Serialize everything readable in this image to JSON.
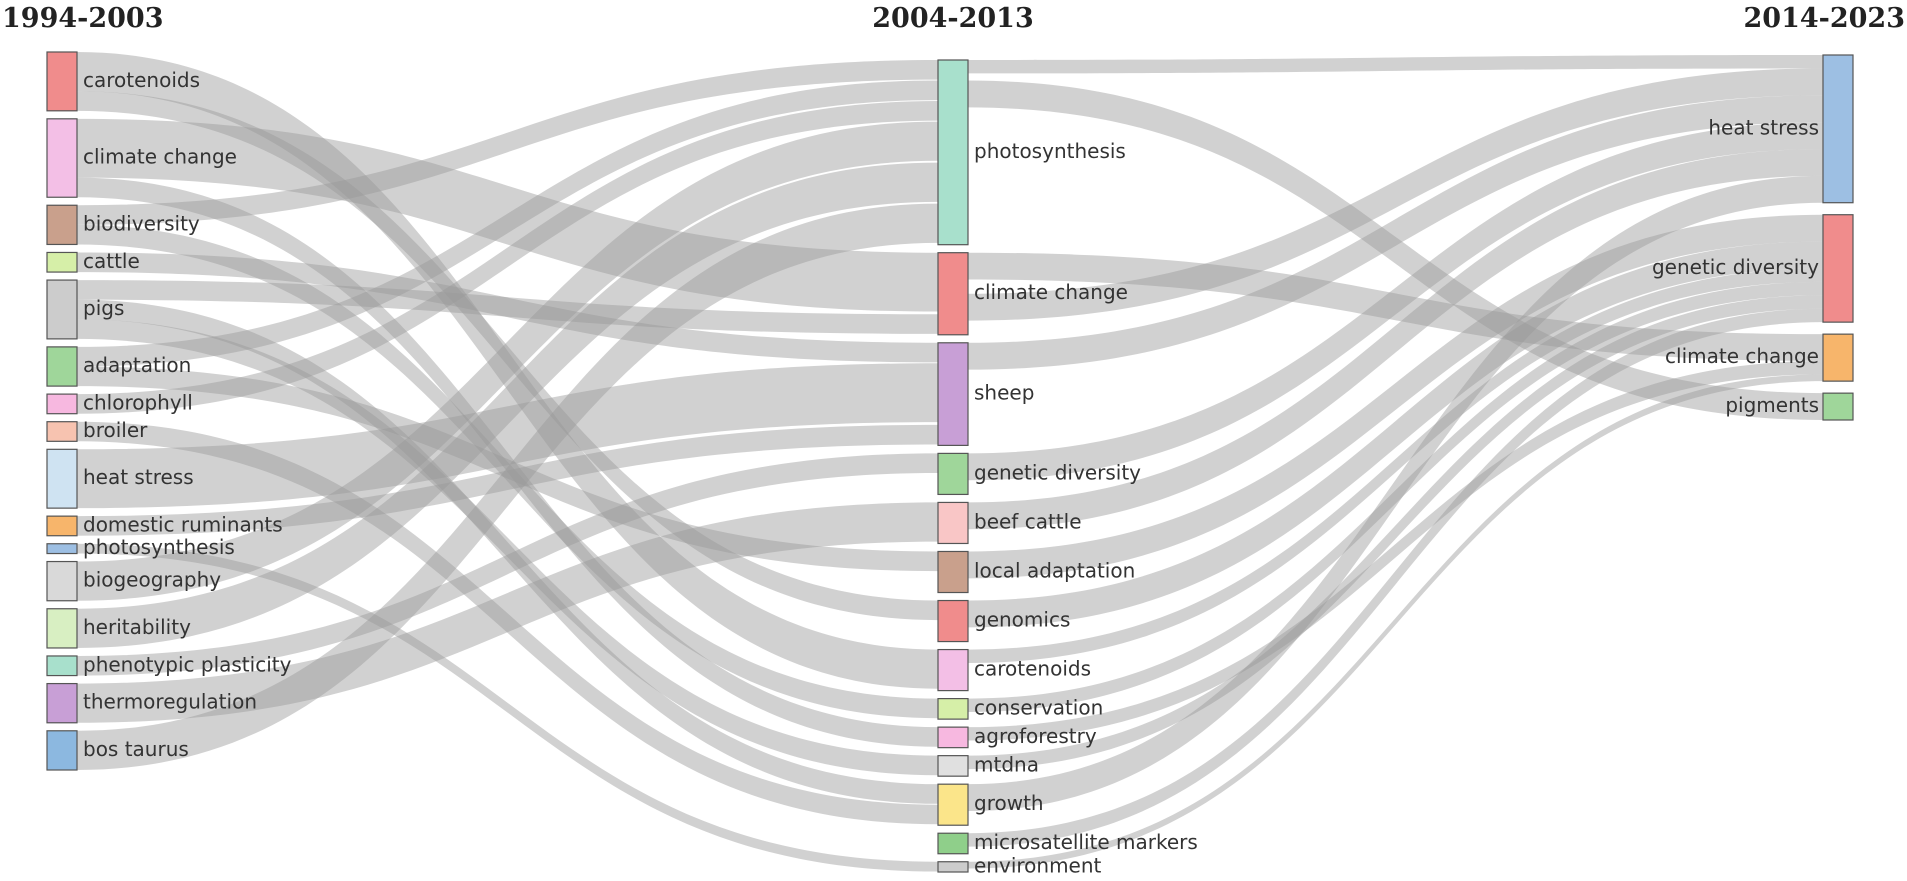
{
  "periods": [
    "1994-2003",
    "2004-2013",
    "2014-2023"
  ],
  "nodes": [
    {
      "id": "c1_carotenoids",
      "label": "carotenoids",
      "column": 0,
      "color": "#f08c8c"
    },
    {
      "id": "c1_climate",
      "label": "climate change",
      "column": 0,
      "color": "#f3bfe6"
    },
    {
      "id": "c1_biodiversity",
      "label": "biodiversity",
      "column": 0,
      "color": "#c9a08c"
    },
    {
      "id": "c1_cattle",
      "label": "cattle",
      "column": 0,
      "color": "#d6efa8"
    },
    {
      "id": "c1_pigs",
      "label": "pigs",
      "column": 0,
      "color": "#cccccc"
    },
    {
      "id": "c1_adaptation",
      "label": "adaptation",
      "column": 0,
      "color": "#9fd69a"
    },
    {
      "id": "c1_chlorophyll",
      "label": "chlorophyll",
      "column": 0,
      "color": "#f7b8e0"
    },
    {
      "id": "c1_broiler",
      "label": "broiler",
      "column": 0,
      "color": "#f7c3b0"
    },
    {
      "id": "c1_heat",
      "label": "heat stress",
      "column": 0,
      "color": "#cfe3f2"
    },
    {
      "id": "c1_domestic",
      "label": "domestic ruminants",
      "column": 0,
      "color": "#f7b56b"
    },
    {
      "id": "c1_photo",
      "label": "photosynthesis",
      "column": 0,
      "color": "#9dbfe3"
    },
    {
      "id": "c1_biogeo",
      "label": "biogeography",
      "column": 0,
      "color": "#d9d9d9"
    },
    {
      "id": "c1_herit",
      "label": "heritability",
      "column": 0,
      "color": "#d8efc2"
    },
    {
      "id": "c1_pheno",
      "label": "phenotypic plasticity",
      "column": 0,
      "color": "#a8e0cc"
    },
    {
      "id": "c1_thermo",
      "label": "thermoregulation",
      "column": 0,
      "color": "#c89fd6"
    },
    {
      "id": "c1_bos",
      "label": "bos taurus",
      "column": 0,
      "color": "#8cb8e0"
    },
    {
      "id": "c2_photo",
      "label": "photosynthesis",
      "column": 1,
      "color": "#a8e0cc"
    },
    {
      "id": "c2_climate",
      "label": "climate change",
      "column": 1,
      "color": "#f08c8c"
    },
    {
      "id": "c2_sheep",
      "label": "sheep",
      "column": 1,
      "color": "#c89fd6"
    },
    {
      "id": "c2_genetic",
      "label": "genetic diversity",
      "column": 1,
      "color": "#9fd69a"
    },
    {
      "id": "c2_beef",
      "label": "beef cattle",
      "column": 1,
      "color": "#f9c6c6"
    },
    {
      "id": "c2_local",
      "label": "local adaptation",
      "column": 1,
      "color": "#c9a08c"
    },
    {
      "id": "c2_genomics",
      "label": "genomics",
      "column": 1,
      "color": "#f08c8c"
    },
    {
      "id": "c2_carotenoids",
      "label": "carotenoids",
      "column": 1,
      "color": "#f3bfe6"
    },
    {
      "id": "c2_conservation",
      "label": "conservation",
      "column": 1,
      "color": "#d6efa8"
    },
    {
      "id": "c2_agro",
      "label": "agroforestry",
      "column": 1,
      "color": "#f7b8e0"
    },
    {
      "id": "c2_mtdna",
      "label": "mtdna",
      "column": 1,
      "color": "#e0e0e0"
    },
    {
      "id": "c2_growth",
      "label": "growth",
      "column": 1,
      "color": "#fbe58a"
    },
    {
      "id": "c2_micro",
      "label": "microsatellite markers",
      "column": 1,
      "color": "#8fcf8a"
    },
    {
      "id": "c2_env",
      "label": "environment",
      "column": 1,
      "color": "#cccccc"
    },
    {
      "id": "c3_heat",
      "label": "heat stress",
      "column": 2,
      "color": "#9dbfe3"
    },
    {
      "id": "c3_genetic",
      "label": "genetic diversity",
      "column": 2,
      "color": "#f08c8c"
    },
    {
      "id": "c3_climate",
      "label": "climate change",
      "column": 2,
      "color": "#f7b56b"
    },
    {
      "id": "c3_pigments",
      "label": "pigments",
      "column": 2,
      "color": "#9fd69a"
    }
  ],
  "links": [
    {
      "source": "c1_carotenoids",
      "target": "c2_carotenoids",
      "value": 2
    },
    {
      "source": "c1_carotenoids",
      "target": "c2_genomics",
      "value": 1
    },
    {
      "source": "c1_climate",
      "target": "c2_climate",
      "value": 3
    },
    {
      "source": "c1_climate",
      "target": "c2_agro",
      "value": 1
    },
    {
      "source": "c1_biodiversity",
      "target": "c2_photo",
      "value": 1
    },
    {
      "source": "c1_biodiversity",
      "target": "c2_conservation",
      "value": 1
    },
    {
      "source": "c1_cattle",
      "target": "c2_sheep",
      "value": 1
    },
    {
      "source": "c1_pigs",
      "target": "c2_climate",
      "value": 1
    },
    {
      "source": "c1_pigs",
      "target": "c2_growth",
      "value": 1
    },
    {
      "source": "c1_pigs",
      "target": "c2_mtdna",
      "value": 1
    },
    {
      "source": "c1_adaptation",
      "target": "c2_photo",
      "value": 1
    },
    {
      "source": "c1_adaptation",
      "target": "c2_local",
      "value": 1
    },
    {
      "source": "c1_chlorophyll",
      "target": "c2_photo",
      "value": 1
    },
    {
      "source": "c1_broiler",
      "target": "c2_growth",
      "value": 1
    },
    {
      "source": "c1_heat",
      "target": "c2_sheep",
      "value": 3
    },
    {
      "source": "c1_domestic",
      "target": "c2_sheep",
      "value": 1
    },
    {
      "source": "c1_photo",
      "target": "c2_env",
      "value": 0.5
    },
    {
      "source": "c1_biogeo",
      "target": "c2_photo",
      "value": 2
    },
    {
      "source": "c1_herit",
      "target": "c2_photo",
      "value": 2
    },
    {
      "source": "c1_pheno",
      "target": "c2_genetic",
      "value": 1
    },
    {
      "source": "c1_thermo",
      "target": "c2_beef",
      "value": 2
    },
    {
      "source": "c1_bos",
      "target": "c2_photo",
      "value": 2
    },
    {
      "source": "c2_photo",
      "target": "c3_heat",
      "value": 1
    },
    {
      "source": "c2_photo",
      "target": "c3_pigments",
      "value": 2
    },
    {
      "source": "c2_climate",
      "target": "c3_climate",
      "value": 2
    },
    {
      "source": "c2_climate",
      "target": "c3_heat",
      "value": 2
    },
    {
      "source": "c2_sheep",
      "target": "c3_heat",
      "value": 2
    },
    {
      "source": "c2_genetic",
      "target": "c3_heat",
      "value": 2
    },
    {
      "source": "c2_beef",
      "target": "c3_heat",
      "value": 2
    },
    {
      "source": "c2_local",
      "target": "c3_genetic",
      "value": 2
    },
    {
      "source": "c2_genomics",
      "target": "c3_genetic",
      "value": 2
    },
    {
      "source": "c2_carotenoids",
      "target": "c3_genetic",
      "value": 1
    },
    {
      "source": "c2_conservation",
      "target": "c3_genetic",
      "value": 1
    },
    {
      "source": "c2_agro",
      "target": "c3_climate",
      "value": 1
    },
    {
      "source": "c2_mtdna",
      "target": "c3_genetic",
      "value": 1
    },
    {
      "source": "c2_growth",
      "target": "c3_heat",
      "value": 2
    },
    {
      "source": "c2_micro",
      "target": "c3_genetic",
      "value": 1
    },
    {
      "source": "c2_env",
      "target": "c3_climate",
      "value": 0.5
    }
  ]
}
